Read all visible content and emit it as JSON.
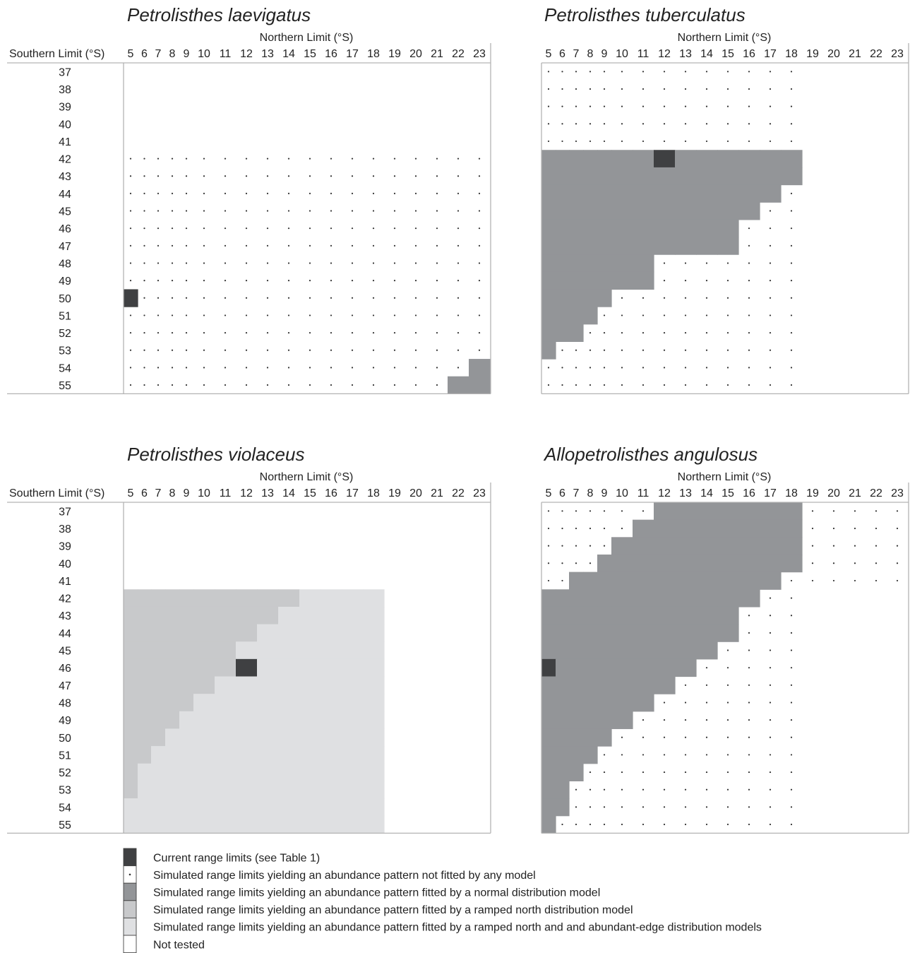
{
  "chart_data": [
    {
      "type": "heatmap",
      "title": "Petrolisthes laevigatus",
      "xlabel": "Northern Limit (°S)",
      "ylabel": "Southern Limit (°S)",
      "show_ylabel": true,
      "x": [
        5,
        6,
        7,
        8,
        9,
        10,
        11,
        12,
        13,
        14,
        15,
        16,
        17,
        18,
        19,
        20,
        21,
        22,
        23
      ],
      "y": [
        37,
        38,
        39,
        40,
        41,
        42,
        43,
        44,
        45,
        46,
        47,
        48,
        49,
        50,
        51,
        52,
        53,
        54,
        55
      ],
      "rows": [
        "NNNNNNNNNNNNNNNNNNN",
        "NNNNNNNNNNNNNNNNNNN",
        "NNNNNNNNNNNNNNNNNNN",
        "NNNNNNNNNNNNNNNNNNN",
        "NNNNNNNNNNNNNNNNNNN",
        "DDDDDDDDDDDDDDDDDDD",
        "DDDDDDDDDDDDDDDDDDD",
        "DDDDDDDDDDDDDDDDDDD",
        "DDDDDDDDDDDDDDDDDDD",
        "DDDDDDDDDDDDDDDDDDD",
        "DDDDDDDDDDDDDDDDDDD",
        "DDDDDDDDDDDDDDDDDDD",
        "DDDDDDDDDDDDDDDDDDD",
        "CDDDDDDDDDDDDDDDDDD",
        "DDDDDDDDDDDDDDDDDDD",
        "DDDDDDDDDDDDDDDDDDD",
        "DDDDDDDDDDDDDDDDDDD",
        "DDDDDDDDDDDDDDDDDDG",
        "DDDDDDDDDDDDDDDDDGG"
      ]
    },
    {
      "type": "heatmap",
      "title": "Petrolisthes tuberculatus",
      "xlabel": "Northern Limit (°S)",
      "ylabel": "",
      "show_ylabel": false,
      "x": [
        5,
        6,
        7,
        8,
        9,
        10,
        11,
        12,
        13,
        14,
        15,
        16,
        17,
        18,
        19,
        20,
        21,
        22,
        23
      ],
      "y": [
        37,
        38,
        39,
        40,
        41,
        42,
        43,
        44,
        45,
        46,
        47,
        48,
        49,
        50,
        51,
        52,
        53,
        54,
        55
      ],
      "rows": [
        "DDDDDDDDDDDDDDNNNNN",
        "DDDDDDDDDDDDDDNNNNN",
        "DDDDDDDDDDDDDDNNNNN",
        "DDDDDDDDDDDDDDNNNNN",
        "DDDDDDDDDDDDDDNNNNN",
        "GGGGGGGCGGGGGGNNNNN",
        "GGGGGGGGGGGGGGNNNNN",
        "GGGGGGGGGGGGGDNNNNN",
        "GGGGGGGGGGGGDDNNNNN",
        "GGGGGGGGGGGDDDNNNNN",
        "GGGGGGGGGGGDDDNNNNN",
        "GGGGGGGDDDDDDDNNNNN",
        "GGGGGGGDDDDDDDNNNNN",
        "GGGGGDDDDDDDDDNNNNN",
        "GGGGDDDDDDDDDDNNNNN",
        "GGGDDDDDDDDDDDNNNNN",
        "GDDDDDDDDDDDDDNNNNN",
        "DDDDDDDDDDDDDDNNNNN",
        "DDDDDDDDDDDDDDNNNNN"
      ]
    },
    {
      "type": "heatmap",
      "title": "Petrolisthes violaceus",
      "xlabel": "Northern Limit (°S)",
      "ylabel": "Southern Limit (°S)",
      "show_ylabel": true,
      "x": [
        5,
        6,
        7,
        8,
        9,
        10,
        11,
        12,
        13,
        14,
        15,
        16,
        17,
        18,
        19,
        20,
        21,
        22,
        23
      ],
      "y": [
        37,
        38,
        39,
        40,
        41,
        42,
        43,
        44,
        45,
        46,
        47,
        48,
        49,
        50,
        51,
        52,
        53,
        54,
        55
      ],
      "rows": [
        "NNNNNNNNNNNNNNNNNNN",
        "NNNNNNNNNNNNNNNNNNN",
        "NNNNNNNNNNNNNNNNNNN",
        "NNNNNNNNNNNNNNNNNNN",
        "NNNNNNNNNNNNNNNNNNN",
        "RRRRRRRRRRLLLLNNNNN",
        "RRRRRRRRRLLLLLNNNNN",
        "RRRRRRRRLLLLLLNNNNN",
        "RRRRRRRLLLLLLLNNNNN",
        "RRRRRRRCLLLLLLNNNNN",
        "RRRRRRLLLLLLLLNNNNN",
        "RRRRRLLLLLLLLLNNNNN",
        "RRRRLLLLLLLLLLNNNNN",
        "RRRLLLLLLLLLLLNNNNN",
        "RRLLLLLLLLLLLLNNNNN",
        "RLLLLLLLLLLLLLNNNNN",
        "RLLLLLLLLLLLLLNNNNN",
        "LLLLLLLLLLLLLLNNNNN",
        "LLLLLLLLLLLLLLNNNNN"
      ]
    },
    {
      "type": "heatmap",
      "title": "Allopetrolisthes angulosus",
      "xlabel": "Northern Limit (°S)",
      "ylabel": "",
      "show_ylabel": false,
      "x": [
        5,
        6,
        7,
        8,
        9,
        10,
        11,
        12,
        13,
        14,
        15,
        16,
        17,
        18,
        19,
        20,
        21,
        22,
        23
      ],
      "y": [
        37,
        38,
        39,
        40,
        41,
        42,
        43,
        44,
        45,
        46,
        47,
        48,
        49,
        50,
        51,
        52,
        53,
        54,
        55
      ],
      "rows": [
        "DDDDDDDGGGGGGGDDDDD",
        "DDDDDDGGGGGGGGDDDDD",
        "DDDDDGGGGGGGGGDDDDD",
        "DDDDGGGGGGGGGGDDDDD",
        "DDGGGGGGGGGGGDDDDDD",
        "GGGGGGGGGGGGDDNNNNN",
        "GGGGGGGGGGGDDDNNNNN",
        "GGGGGGGGGGGDDDNNNNN",
        "GGGGGGGGGGDDDDNNNNN",
        "CGGGGGGGGDDDDDNNNNN",
        "GGGGGGGGDDDDDDNNNNN",
        "GGGGGGGDDDDDDDNNNNN",
        "GGGGGGDDDDDDDDNNNNN",
        "GGGGGDDDDDDDDDNNNNN",
        "GGGGDDDDDDDDDDNNNNN",
        "GGGDDDDDDDDDDDNNNNN",
        "GGDDDDDDDDDDDDNNNNN",
        "GGDDDDDDDDDDDDNNNNN",
        "GDDDDDDDDDDDDDNNNNN"
      ]
    }
  ],
  "legend": [
    {
      "code": "C",
      "label": "Current range limits (see Table 1)",
      "color": "#3f4042"
    },
    {
      "code": "D",
      "label": "Simulated range limits yielding an abundance pattern not fitted by any model",
      "color": "#ffffff"
    },
    {
      "code": "G",
      "label": "Simulated range limits yielding an abundance pattern fitted by a normal distribution model",
      "color": "#939598"
    },
    {
      "code": "R",
      "label": "Simulated range limits yielding an abundance pattern fitted by a ramped north distribution model",
      "color": "#c8c9cb"
    },
    {
      "code": "L",
      "label": "Simulated range limits yielding an abundance pattern fitted by a ramped north and and abundant-edge distribution models",
      "color": "#dfe0e2"
    },
    {
      "code": "N",
      "label": "Not tested",
      "color": "#ffffff"
    }
  ],
  "colors": {
    "current": "#3f4042",
    "normal": "#939598",
    "ramped_north": "#c8c9cb",
    "ramped_north_abundant_edge": "#dfe0e2",
    "dot": "#333333",
    "axis_line": "#b3b3b3"
  }
}
